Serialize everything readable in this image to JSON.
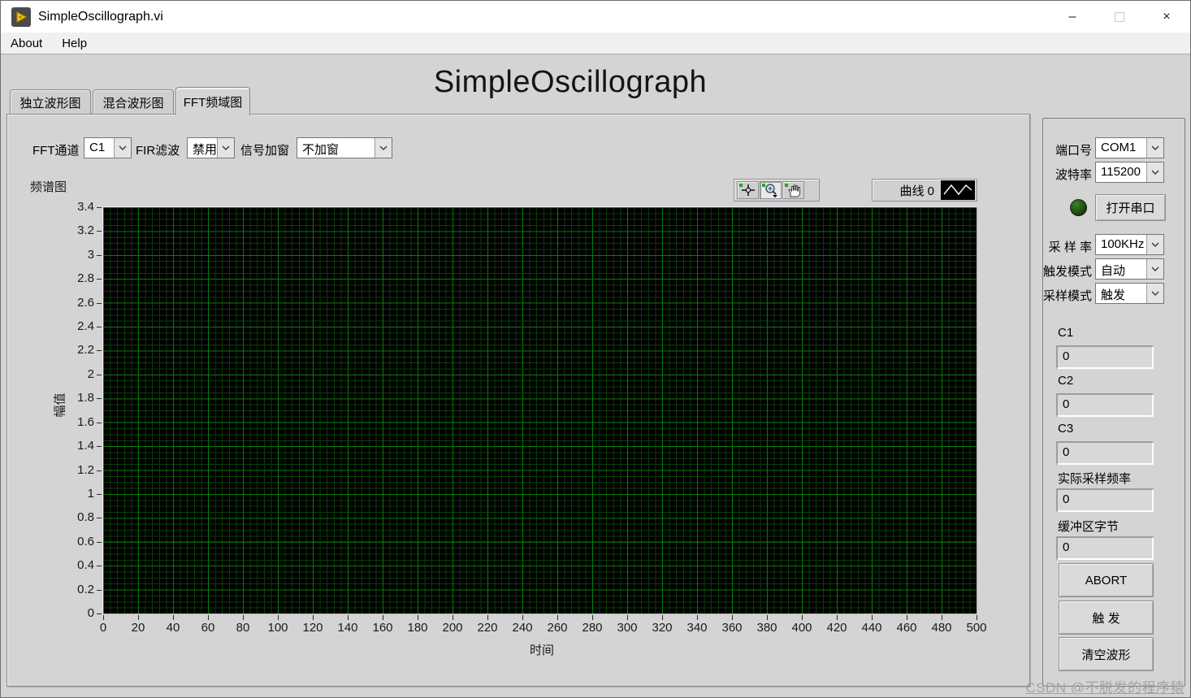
{
  "window": {
    "title": "SimpleOscillograph.vi",
    "controls": {
      "minimize": "–",
      "close": "×"
    }
  },
  "menu": {
    "items": [
      {
        "label": "About"
      },
      {
        "label": "Help"
      }
    ]
  },
  "header": {
    "title": "SimpleOscillograph"
  },
  "tabs": [
    {
      "label": "独立波形图",
      "active": false
    },
    {
      "label": "混合波形图",
      "active": false
    },
    {
      "label": "FFT频域图",
      "active": true
    }
  ],
  "controls": {
    "fft_channel": {
      "label": "FFT通道",
      "value": "C1"
    },
    "fir_filter": {
      "label": "FIR滤波",
      "value": "禁用"
    },
    "signal_window": {
      "label": "信号加窗",
      "value": "不加窗"
    }
  },
  "graph": {
    "title": "频谱图",
    "legend": {
      "name": "曲线 0"
    },
    "palette_tools": [
      "crosshair-tool",
      "zoom-tool",
      "pan-tool"
    ]
  },
  "chart_data": {
    "type": "line",
    "title": "频谱图",
    "xlabel": "时间",
    "ylabel": "幅值",
    "xlim": [
      0,
      500
    ],
    "ylim": [
      0,
      3.4
    ],
    "x_ticks": [
      "0",
      "20",
      "40",
      "60",
      "80",
      "100",
      "120",
      "140",
      "160",
      "180",
      "200",
      "220",
      "240",
      "260",
      "280",
      "300",
      "320",
      "340",
      "360",
      "380",
      "400",
      "420",
      "440",
      "460",
      "480",
      "500"
    ],
    "y_ticks": [
      "0",
      "0.2",
      "0.4",
      "0.6",
      "0.8",
      "1",
      "1.2",
      "1.4",
      "1.6",
      "1.8",
      "2",
      "2.2",
      "2.4",
      "2.6",
      "2.8",
      "3",
      "3.2",
      "3.4"
    ],
    "grid": true,
    "legend_position": "top-right",
    "plot_bg": "#000000",
    "grid_major_color": "#077c07",
    "grid_minor_color": "#0b3b0b",
    "series": [
      {
        "name": "曲线 0",
        "x": [],
        "y": []
      }
    ]
  },
  "sidebar": {
    "port": {
      "label": "端口号",
      "value": "COM1"
    },
    "baud": {
      "label": "波特率",
      "value": "115200"
    },
    "open_serial": {
      "label": "打开串口"
    },
    "sample_rate": {
      "label": "采 样 率",
      "value": "100KHz"
    },
    "trigger_mode": {
      "label": "触发模式",
      "value": "自动"
    },
    "sampling_mode": {
      "label": "采样模式",
      "value": "触发"
    },
    "readouts": [
      {
        "label": "C1",
        "value": "0"
      },
      {
        "label": "C2",
        "value": "0"
      },
      {
        "label": "C3",
        "value": "0"
      },
      {
        "label": "实际采样频率",
        "value": "0"
      },
      {
        "label": "缓冲区字节",
        "value": "0"
      }
    ],
    "buttons": [
      {
        "label": "ABORT"
      },
      {
        "label": "触 发"
      },
      {
        "label": "清空波形"
      }
    ]
  },
  "watermark": "CSDN @不脱发的程序猿"
}
